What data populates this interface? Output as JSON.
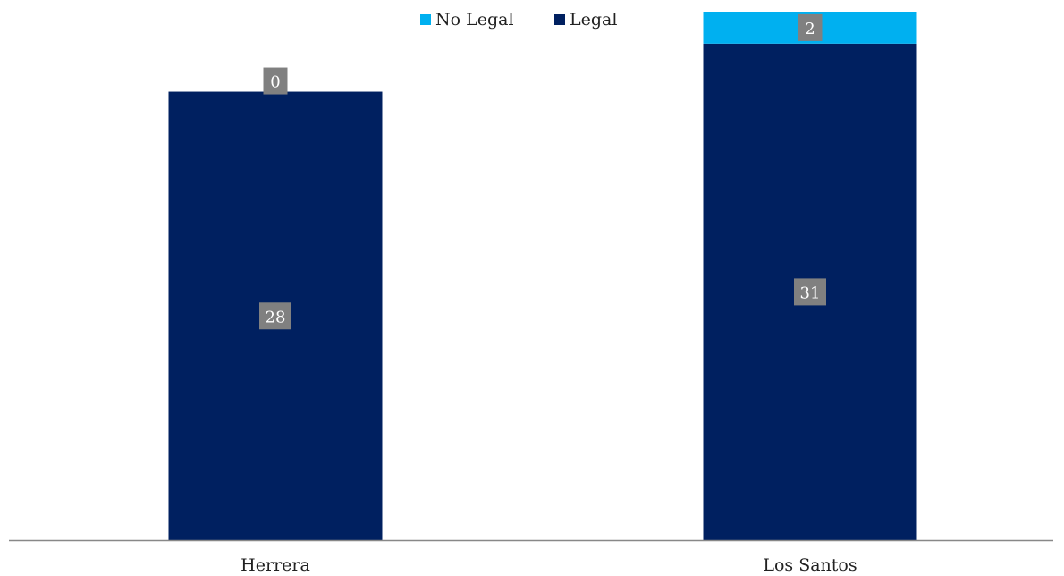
{
  "chart_data": {
    "type": "bar",
    "stacked": true,
    "categories": [
      "Herrera",
      "Los Santos"
    ],
    "series": [
      {
        "name": "Legal",
        "values": [
          28,
          31
        ],
        "color": "#002060"
      },
      {
        "name": "No Legal",
        "values": [
          0,
          2
        ],
        "color": "#00B0F0"
      }
    ],
    "ylim": [
      0,
      33
    ],
    "grid": false,
    "legend": "top-center",
    "data_label_bg": "#808080"
  }
}
